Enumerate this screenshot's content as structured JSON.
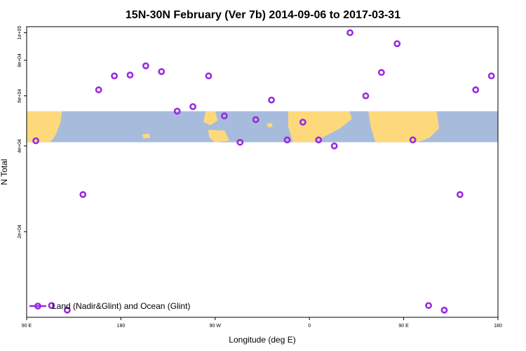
{
  "chart_data": {
    "type": "scatter",
    "title": "15N-30N February (Ver 7b)   2014-09-06 to 2017-03-31",
    "xlabel": "Longitude (deg E)",
    "ylabel": "N Total",
    "xlim": [
      90,
      450
    ],
    "ylim": [
      10000,
      105000
    ],
    "x_ticks": [
      {
        "value": 90,
        "label": "90 E"
      },
      {
        "value": 162,
        "label": "180"
      },
      {
        "value": 234,
        "label": "90 W"
      },
      {
        "value": 306,
        "label": "0"
      },
      {
        "value": 378,
        "label": "90 E"
      },
      {
        "value": 450,
        "label": "180"
      }
    ],
    "y_ticks": [
      {
        "value": 20000,
        "label": "2e+04"
      },
      {
        "value": 40000,
        "label": "4e+04"
      },
      {
        "value": 60000,
        "label": "6e+04"
      },
      {
        "value": 80000,
        "label": "8e+04"
      },
      {
        "value": 100000,
        "label": "1e+05"
      }
    ],
    "map_band": {
      "y_top": 53000,
      "y_bottom": 41200,
      "ocean_color": "#a7bcdc",
      "land_color": "#fed97c"
    },
    "series": [
      {
        "name": "Land (Nadir&Glint) and Ocean (Glint)",
        "color": "#9a2be0",
        "marker": "open-circle",
        "x": [
          97,
          109,
          121,
          133,
          145,
          157,
          169,
          181,
          193,
          205,
          217,
          229,
          241,
          253,
          265,
          277,
          289,
          301,
          313,
          325,
          337,
          349,
          361,
          373,
          385,
          397,
          409,
          421,
          433,
          445
        ],
        "y": [
          41700,
          11000,
          10600,
          27000,
          63000,
          70500,
          71000,
          76500,
          73000,
          53000,
          55000,
          70500,
          51000,
          41200,
          49500,
          58000,
          42000,
          48500,
          42000,
          40000,
          100000,
          60000,
          72500,
          91500,
          42000,
          11000,
          10600,
          27000,
          63000,
          70500
        ]
      }
    ],
    "legend_position": "bottom-left"
  }
}
